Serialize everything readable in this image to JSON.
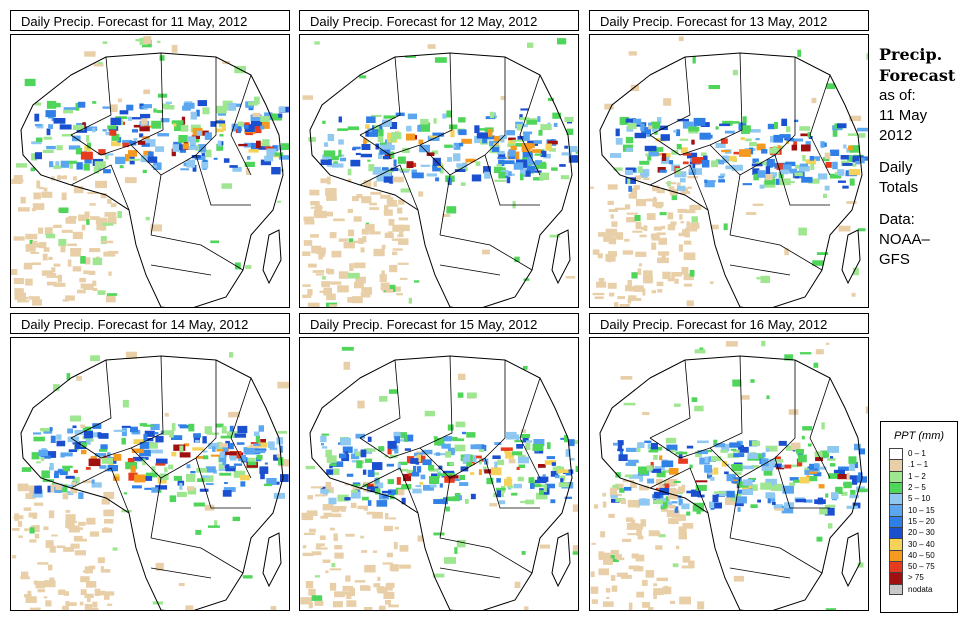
{
  "panels": [
    {
      "title": "Daily Precip. Forecast for  11 May, 2012",
      "seed": 11
    },
    {
      "title": "Daily Precip. Forecast for  12 May, 2012",
      "seed": 12
    },
    {
      "title": "Daily Precip. Forecast for  13 May, 2012",
      "seed": 13
    },
    {
      "title": "Daily Precip. Forecast for  14 May, 2012",
      "seed": 14
    },
    {
      "title": "Daily Precip. Forecast for  15 May, 2012",
      "seed": 15
    },
    {
      "title": "Daily Precip. Forecast for  16 May, 2012",
      "seed": 16
    }
  ],
  "side": {
    "title_line1": "Precip.",
    "title_line2": "Forecast",
    "asof": "as of:",
    "date_line1": "11 May",
    "date_line2": "2012",
    "daily1": "Daily",
    "daily2": "Totals",
    "data1": "Data:",
    "data2": "NOAA–",
    "data3": "GFS"
  },
  "legend": {
    "title": "PPT (mm)",
    "items": [
      {
        "label": "0 – 1",
        "color": "#ffffff"
      },
      {
        "label": ".1 – 1",
        "color": "#e8cfa8"
      },
      {
        "label": "1 – 2",
        "color": "#9ee68f"
      },
      {
        "label": "2 – 5",
        "color": "#4fd65a"
      },
      {
        "label": "5 – 10",
        "color": "#8fc8f0"
      },
      {
        "label": "10 – 15",
        "color": "#5aa6f0"
      },
      {
        "label": "15 – 20",
        "color": "#2f7fe6"
      },
      {
        "label": "20 – 30",
        "color": "#1a4fd0"
      },
      {
        "label": "30 – 40",
        "color": "#f5d35a"
      },
      {
        "label": "40 – 50",
        "color": "#f59a1e"
      },
      {
        "label": "50 – 75",
        "color": "#e63b1e"
      },
      {
        "label": "> 75",
        "color": "#a01010"
      },
      {
        "label": "nodata",
        "color": "#c8c8c8"
      }
    ]
  }
}
